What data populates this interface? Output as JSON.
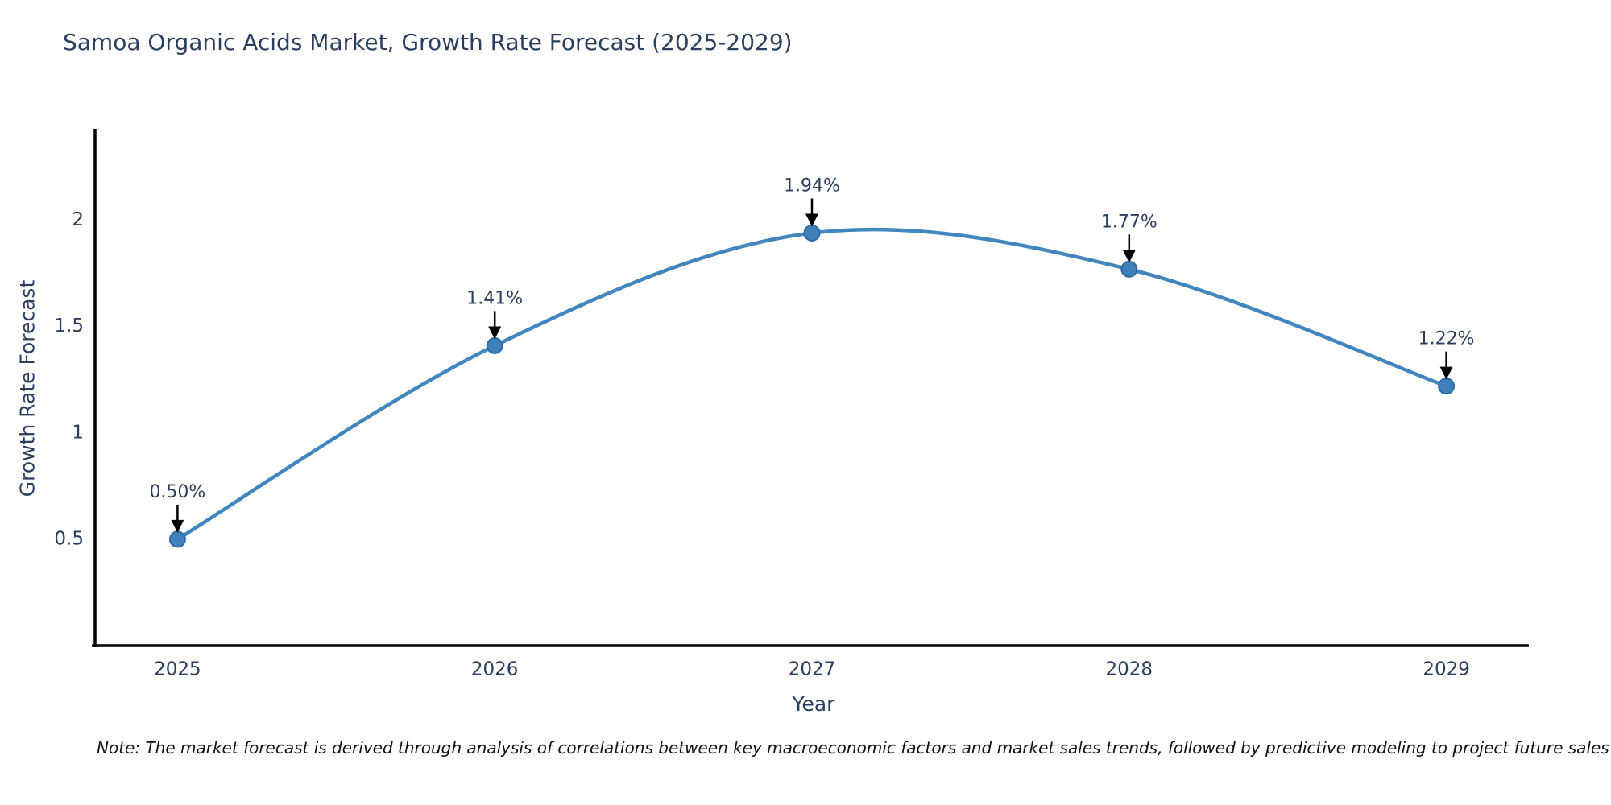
{
  "title": "Samoa Organic Acids Market, Growth Rate Forecast (2025-2029)",
  "footnote": "Note: The market forecast is derived through analysis of correlations between key macroeconomic factors and market sales trends, followed by predictive modeling to project future sales",
  "colors": {
    "line": "#4286c0",
    "marker_fill": "#3f7fba",
    "marker_edge": "#2e6ba6",
    "axis_line": "#000000",
    "title_text": "#2a3f5f",
    "tick_text": "#2a3f5f",
    "annotation_text": "#2a3f5f",
    "arrow": "#000000",
    "background": "#ffffff"
  },
  "chart_data": {
    "type": "line",
    "line_shape": "spline",
    "x": [
      2025,
      2026,
      2027,
      2028,
      2029
    ],
    "values": [
      0.5,
      1.41,
      1.94,
      1.77,
      1.22
    ],
    "point_labels": [
      "0.50%",
      "1.41%",
      "1.94%",
      "1.77%",
      "1.22%"
    ],
    "title": "Samoa Organic Acids Market, Growth Rate Forecast (2025-2029)",
    "xlabel": "Year",
    "ylabel": "Growth Rate Forecast",
    "xtick_labels": [
      "2025",
      "2026",
      "2027",
      "2028",
      "2029"
    ],
    "ytick_values": [
      0.5,
      1,
      1.5,
      2
    ],
    "ytick_labels": [
      "0.5",
      "1",
      "1.5",
      "2"
    ],
    "xlim": [
      2024.74,
      2029.26
    ],
    "ylim": [
      0,
      2.43
    ],
    "grid": false,
    "legend": false,
    "annotations_arrows": true
  }
}
